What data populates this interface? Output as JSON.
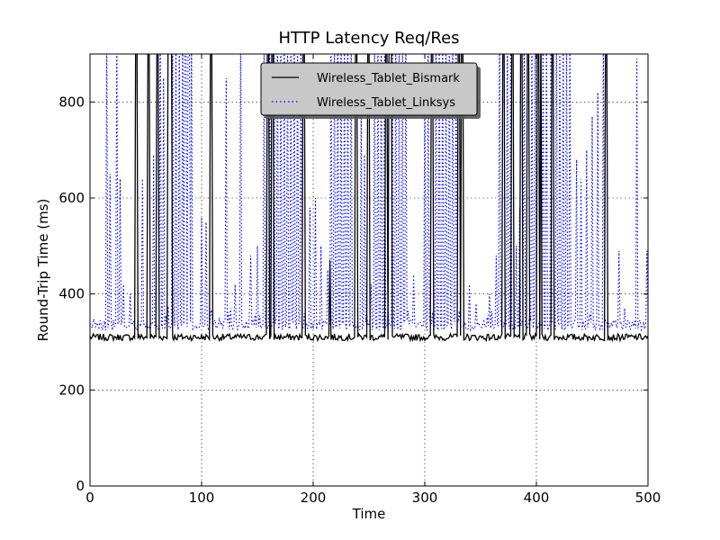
{
  "chart_data": {
    "type": "line",
    "title": "HTTP Latency Req/Res",
    "xlabel": "Time",
    "ylabel": "Round-Trip Time (ms)",
    "xlim": [
      0,
      500
    ],
    "ylim": [
      0,
      900
    ],
    "xticks": [
      0,
      100,
      200,
      300,
      400,
      500
    ],
    "yticks": [
      0,
      200,
      400,
      600,
      800
    ],
    "grid": true,
    "legend": "top-center",
    "series": [
      {
        "name": "Wireless_Tablet_Bismark",
        "color": "#000000",
        "style": "solid",
        "baseline": 310,
        "spikes": [
          [
            41,
            900
          ],
          [
            42,
            900
          ],
          [
            52,
            900
          ],
          [
            53,
            900
          ],
          [
            60,
            900
          ],
          [
            61,
            900
          ],
          [
            70,
            900
          ],
          [
            71,
            900
          ],
          [
            72,
            900
          ],
          [
            73,
            900
          ],
          [
            108,
            900
          ],
          [
            109,
            900
          ],
          [
            159,
            900
          ],
          [
            160,
            900
          ],
          [
            163,
            900
          ],
          [
            164,
            900
          ],
          [
            191,
            900
          ],
          [
            192,
            900
          ],
          [
            215,
            470
          ],
          [
            238,
            900
          ],
          [
            239,
            900
          ],
          [
            249,
            900
          ],
          [
            250,
            900
          ],
          [
            265,
            900
          ],
          [
            266,
            900
          ],
          [
            268,
            900
          ],
          [
            269,
            900
          ],
          [
            270,
            900
          ],
          [
            306,
            900
          ],
          [
            307,
            900
          ],
          [
            330,
            900
          ],
          [
            331,
            900
          ],
          [
            333,
            900
          ],
          [
            334,
            900
          ],
          [
            370,
            900
          ],
          [
            371,
            900
          ],
          [
            378,
            900
          ],
          [
            379,
            900
          ],
          [
            386,
            900
          ],
          [
            387,
            900
          ],
          [
            392,
            900
          ],
          [
            393,
            900
          ],
          [
            401,
            900
          ],
          [
            402,
            900
          ],
          [
            404,
            900
          ],
          [
            414,
            900
          ],
          [
            415,
            900
          ],
          [
            462,
            900
          ],
          [
            463,
            900
          ]
        ]
      },
      {
        "name": "Wireless_Tablet_Linksys",
        "color": "#0000ff",
        "style": "dotted",
        "baseline": 335,
        "spikes": [
          [
            15,
            900
          ],
          [
            18,
            650
          ],
          [
            24,
            900
          ],
          [
            27,
            640
          ],
          [
            30,
            420
          ],
          [
            36,
            400
          ],
          [
            47,
            640
          ],
          [
            57,
            690
          ],
          [
            63,
            900
          ],
          [
            66,
            850
          ],
          [
            74,
            900
          ],
          [
            77,
            900
          ],
          [
            80,
            900
          ],
          [
            83,
            900
          ],
          [
            85,
            900
          ],
          [
            86,
            900
          ],
          [
            88,
            900
          ],
          [
            89,
            900
          ],
          [
            91,
            900
          ],
          [
            100,
            560
          ],
          [
            104,
            550
          ],
          [
            122,
            850
          ],
          [
            130,
            420
          ],
          [
            135,
            900
          ],
          [
            144,
            480
          ],
          [
            150,
            500
          ],
          [
            156,
            900
          ],
          [
            161,
            900
          ],
          [
            165,
            900
          ],
          [
            168,
            900
          ],
          [
            171,
            900
          ],
          [
            174,
            900
          ],
          [
            177,
            900
          ],
          [
            180,
            900
          ],
          [
            183,
            900
          ],
          [
            186,
            900
          ],
          [
            189,
            900
          ],
          [
            197,
            580
          ],
          [
            202,
            600
          ],
          [
            207,
            500
          ],
          [
            213,
            450
          ],
          [
            216,
            900
          ],
          [
            219,
            900
          ],
          [
            222,
            900
          ],
          [
            225,
            900
          ],
          [
            228,
            900
          ],
          [
            231,
            900
          ],
          [
            234,
            900
          ],
          [
            243,
            800
          ],
          [
            246,
            690
          ],
          [
            252,
            420
          ],
          [
            255,
            900
          ],
          [
            258,
            900
          ],
          [
            261,
            900
          ],
          [
            264,
            900
          ],
          [
            271,
            900
          ],
          [
            274,
            900
          ],
          [
            277,
            900
          ],
          [
            280,
            900
          ],
          [
            283,
            900
          ],
          [
            290,
            440
          ],
          [
            300,
            880
          ],
          [
            303,
            900
          ],
          [
            310,
            900
          ],
          [
            313,
            900
          ],
          [
            316,
            900
          ],
          [
            319,
            900
          ],
          [
            322,
            900
          ],
          [
            325,
            900
          ],
          [
            328,
            900
          ],
          [
            340,
            420
          ],
          [
            346,
            380
          ],
          [
            358,
            400
          ],
          [
            364,
            480
          ],
          [
            367,
            900
          ],
          [
            374,
            900
          ],
          [
            377,
            900
          ],
          [
            382,
            500
          ],
          [
            385,
            580
          ],
          [
            389,
            900
          ],
          [
            396,
            900
          ],
          [
            399,
            900
          ],
          [
            406,
            900
          ],
          [
            409,
            900
          ],
          [
            413,
            900
          ],
          [
            418,
            900
          ],
          [
            421,
            900
          ],
          [
            424,
            900
          ],
          [
            427,
            900
          ],
          [
            430,
            900
          ],
          [
            436,
            680
          ],
          [
            440,
            640
          ],
          [
            445,
            700
          ],
          [
            450,
            770
          ],
          [
            455,
            820
          ],
          [
            460,
            900
          ],
          [
            474,
            490
          ],
          [
            490,
            890
          ],
          [
            499,
            490
          ]
        ]
      }
    ]
  }
}
